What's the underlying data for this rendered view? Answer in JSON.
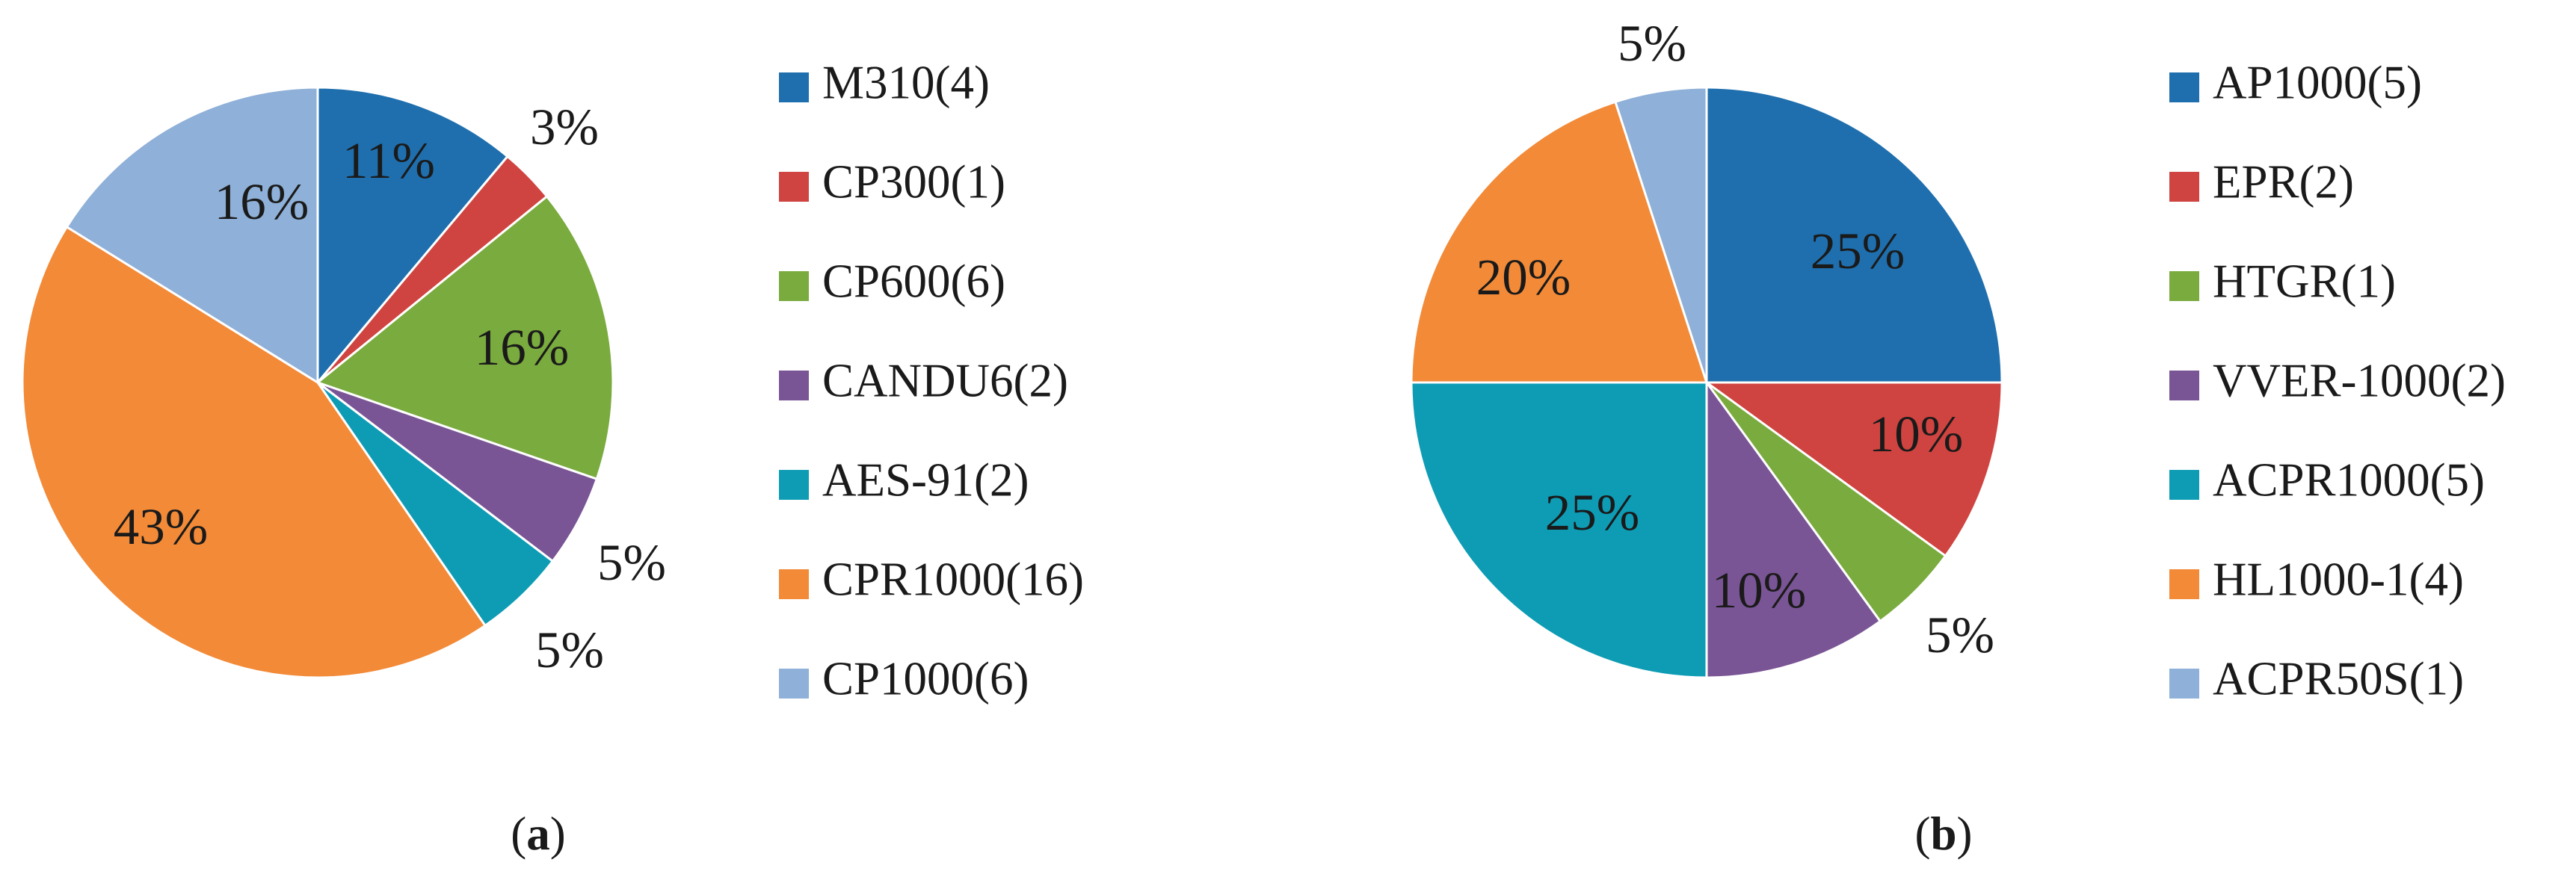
{
  "chart_data": [
    {
      "type": "pie",
      "panel_label": "a",
      "slices": [
        {
          "name": "M310(4)",
          "value": 11,
          "label": "11%",
          "color": "#1f6fae"
        },
        {
          "name": "CP300(1)",
          "value": 3,
          "label": "3%",
          "color": "#cf4440"
        },
        {
          "name": "CP600(6)",
          "value": 16,
          "label": "16%",
          "color": "#7aab3e"
        },
        {
          "name": "CANDU6(2)",
          "value": 5,
          "label": "5%",
          "color": "#7a5595"
        },
        {
          "name": "AES-91(2)",
          "value": 5,
          "label": "5%",
          "color": "#0e9cb5"
        },
        {
          "name": "CPR1000(16)",
          "value": 43,
          "label": "43%",
          "color": "#f28a38"
        },
        {
          "name": "CP1000(6)",
          "value": 16,
          "label": "16%",
          "color": "#8fb0d8"
        }
      ],
      "start_angle_deg": 0,
      "direction": "clockwise",
      "legend_position": "right"
    },
    {
      "type": "pie",
      "panel_label": "b",
      "slices": [
        {
          "name": "AP1000(5)",
          "value": 25,
          "label": "25%",
          "color": "#1f6fae"
        },
        {
          "name": "EPR(2)",
          "value": 10,
          "label": "10%",
          "color": "#cf4440"
        },
        {
          "name": "HTGR(1)",
          "value": 5,
          "label": "5%",
          "color": "#7aab3e"
        },
        {
          "name": "VVER-1000(2)",
          "value": 10,
          "label": "10%",
          "color": "#7a5595"
        },
        {
          "name": "ACPR1000(5)",
          "value": 25,
          "label": "25%",
          "color": "#0e9cb5"
        },
        {
          "name": "HL1000-1(4)",
          "value": 20,
          "label": "20%",
          "color": "#f28a38"
        },
        {
          "name": "ACPR50S(1)",
          "value": 5,
          "label": "5%",
          "color": "#8fb0d8"
        }
      ],
      "start_angle_deg": 0,
      "direction": "clockwise",
      "legend_position": "right"
    }
  ]
}
